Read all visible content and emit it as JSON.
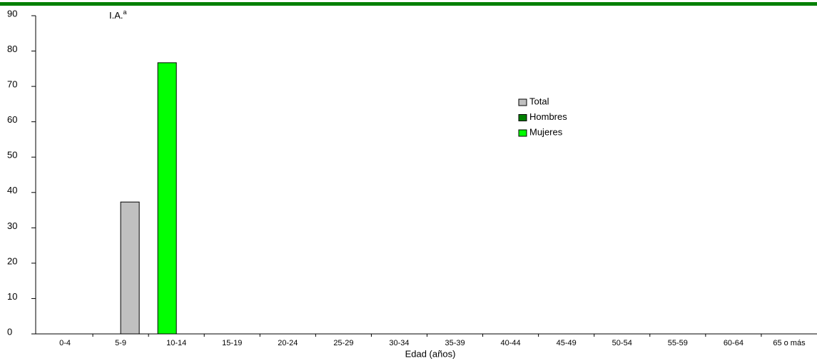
{
  "chart_data": {
    "type": "bar",
    "x_label": "Edad (años)",
    "annotation": "I.A.",
    "annotation_superscript": "a",
    "categories": [
      "0-4",
      "5-9",
      "10-14",
      "15-19",
      "20-24",
      "25-29",
      "30-34",
      "35-39",
      "40-44",
      "45-49",
      "50-54",
      "55-59",
      "60-64",
      "65 o más"
    ],
    "series": [
      {
        "name": "Total",
        "color": "#c0c0c0",
        "values": [
          null,
          37.3,
          null,
          null,
          null,
          null,
          null,
          null,
          null,
          null,
          null,
          null,
          null,
          null
        ]
      },
      {
        "name": "Hombres",
        "color": "#008000",
        "values": [
          null,
          0,
          null,
          null,
          null,
          null,
          null,
          null,
          null,
          null,
          null,
          null,
          null,
          null
        ]
      },
      {
        "name": "Mujeres",
        "color": "#00ff00",
        "values": [
          null,
          76.7,
          null,
          null,
          null,
          null,
          null,
          null,
          null,
          null,
          null,
          null,
          null,
          null
        ]
      }
    ],
    "ylim": [
      0,
      90
    ],
    "yticks": [
      0,
      10,
      20,
      30,
      40,
      50,
      60,
      70,
      80,
      90
    ],
    "grid": false,
    "legend": "right"
  }
}
